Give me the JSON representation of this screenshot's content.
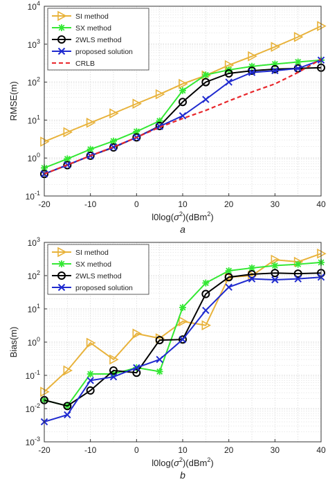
{
  "chart_data": [
    {
      "type": "line",
      "panel_label": "a",
      "ylabel": "RMSE(m)",
      "xlabel_prefix": "l0log(",
      "xlabel_sigma": "σ",
      "xlabel_sup": "2",
      "xlabel_mid": ")(dBm",
      "xlabel_suffix": ")",
      "yscale": "log",
      "xlim": [
        -20,
        40
      ],
      "ylim": [
        0.1,
        10000
      ],
      "x_ticks": [
        -20,
        -10,
        0,
        10,
        20,
        30,
        40
      ],
      "y_tick_exponents": [
        -1,
        0,
        1,
        2,
        3,
        4
      ],
      "grid": true,
      "legend_position": "top-left",
      "x": [
        -20,
        -15,
        -10,
        -5,
        0,
        5,
        10,
        15,
        20,
        25,
        30,
        35,
        40
      ],
      "series": [
        {
          "name": "SI method",
          "color": "#E8B23A",
          "marker": "triangle-right",
          "values": [
            2.7,
            4.8,
            8.5,
            15,
            27,
            48,
            90,
            150,
            280,
            480,
            850,
            1550,
            3000
          ]
        },
        {
          "name": "SX method",
          "color": "#33E833",
          "marker": "asterisk",
          "values": [
            0.55,
            0.95,
            1.7,
            2.8,
            5.0,
            9.5,
            60,
            155,
            210,
            260,
            300,
            340,
            380
          ]
        },
        {
          "name": "2WLS method",
          "color": "#000000",
          "marker": "circle",
          "values": [
            0.38,
            0.65,
            1.15,
            1.9,
            3.5,
            7.0,
            30,
            100,
            170,
            200,
            220,
            230,
            240
          ]
        },
        {
          "name": "proposed solution",
          "color": "#1F2ACF",
          "marker": "x",
          "values": [
            0.38,
            0.66,
            1.15,
            1.95,
            3.5,
            6.8,
            13,
            35,
            100,
            180,
            200,
            230,
            380
          ]
        },
        {
          "name": "CRLB",
          "color": "#E8262B",
          "marker": "none",
          "dashed": true,
          "values": [
            0.38,
            0.66,
            1.15,
            1.95,
            3.5,
            6.5,
            11,
            18,
            32,
            55,
            90,
            180,
            400
          ]
        }
      ]
    },
    {
      "type": "line",
      "panel_label": "b",
      "ylabel": "Bias(m)",
      "xlabel_prefix": "l0log(",
      "xlabel_sigma": "σ",
      "xlabel_sup": "2",
      "xlabel_mid": ")(dBm",
      "xlabel_suffix": ")",
      "yscale": "log",
      "xlim": [
        -20,
        40
      ],
      "ylim": [
        0.001,
        1000
      ],
      "x_ticks": [
        -20,
        -10,
        0,
        10,
        20,
        30,
        40
      ],
      "y_tick_exponents": [
        -3,
        -2,
        -1,
        0,
        1,
        2,
        3
      ],
      "grid": true,
      "legend_position": "top-left",
      "x": [
        -20,
        -15,
        -10,
        -5,
        0,
        5,
        10,
        15,
        20,
        25,
        30,
        35,
        40
      ],
      "series": [
        {
          "name": "SI method",
          "color": "#E8B23A",
          "marker": "triangle-right",
          "values": [
            0.032,
            0.14,
            0.95,
            0.3,
            1.8,
            1.3,
            4.2,
            3.2,
            90,
            100,
            300,
            260,
            460
          ]
        },
        {
          "name": "SX method",
          "color": "#33E833",
          "marker": "asterisk",
          "values": [
            0.018,
            0.012,
            0.11,
            0.11,
            0.17,
            0.13,
            11,
            60,
            140,
            170,
            200,
            220,
            250
          ]
        },
        {
          "name": "2WLS method",
          "color": "#000000",
          "marker": "circle",
          "values": [
            0.018,
            0.012,
            0.035,
            0.14,
            0.12,
            1.15,
            1.2,
            28,
            90,
            110,
            120,
            115,
            120
          ]
        },
        {
          "name": "proposed solution",
          "color": "#1F2ACF",
          "marker": "x",
          "values": [
            0.004,
            0.0065,
            0.07,
            0.09,
            0.17,
            0.3,
            1.2,
            9,
            45,
            80,
            75,
            80,
            90
          ]
        }
      ]
    }
  ]
}
